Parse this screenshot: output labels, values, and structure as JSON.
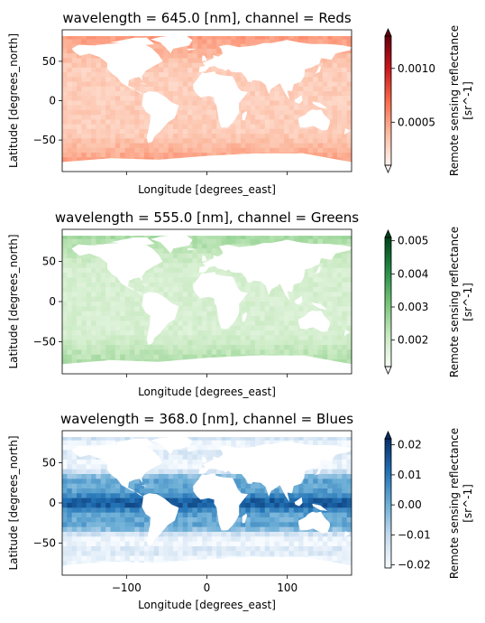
{
  "chart_data": [
    {
      "type": "heatmap",
      "title": "wavelength = 645.0 [nm], channel = Reds",
      "ylabel": "Latitude [degrees_north]",
      "xlabel": "Longitude [degrees_east]",
      "xlim": [
        -180,
        180
      ],
      "ylim": [
        -90,
        90
      ],
      "x_ticks": [],
      "y_ticks": [
        50,
        0,
        -50
      ],
      "colormap": "Reds",
      "colorbar": {
        "label": "Remote sensing reflectance [sr^-1]",
        "range": [
          0.0001,
          0.0013
        ],
        "ticks": [
          0.0005,
          0.001
        ],
        "tick_labels": [
          "0.0005",
          "0.0010"
        ],
        "extend": "both"
      }
    },
    {
      "type": "heatmap",
      "title": "wavelength = 555.0 [nm], channel = Greens",
      "ylabel": "Latitude [degrees_north]",
      "xlabel": "Longitude [degrees_east]",
      "xlim": [
        -180,
        180
      ],
      "ylim": [
        -90,
        90
      ],
      "x_ticks": [],
      "y_ticks": [
        50,
        0,
        -50
      ],
      "colormap": "Greens",
      "colorbar": {
        "label": "Remote sensing reflectance [sr^-1]",
        "range": [
          0.0012,
          0.0051
        ],
        "ticks": [
          0.002,
          0.003,
          0.004,
          0.005
        ],
        "tick_labels": [
          "0.002",
          "0.003",
          "0.004",
          "0.005"
        ],
        "extend": "both"
      }
    },
    {
      "type": "heatmap",
      "title": "wavelength = 368.0 [nm], channel = Blues",
      "ylabel": "Latitude [degrees_north]",
      "xlabel": "Longitude [degrees_east]",
      "xlim": [
        -180,
        180
      ],
      "ylim": [
        -90,
        90
      ],
      "x_ticks": [
        -100,
        0,
        100
      ],
      "y_ticks": [
        50,
        0,
        -50
      ],
      "colormap": "Blues",
      "colorbar": {
        "label": "Remote sensing reflectance [sr^-1]",
        "range": [
          -0.021,
          0.022
        ],
        "ticks": [
          -0.02,
          -0.01,
          0.0,
          0.01,
          0.02
        ],
        "tick_labels": [
          "−0.02",
          "−0.01",
          "0.00",
          "0.01",
          "0.02"
        ],
        "extend": "max"
      }
    }
  ],
  "colormaps": {
    "Reds": [
      "#fff5f0",
      "#fcbba1",
      "#fb6a4a",
      "#cb181d",
      "#67000d"
    ],
    "Greens": [
      "#f7fcf5",
      "#c7e9c0",
      "#74c476",
      "#238b45",
      "#00441b"
    ],
    "Blues": [
      "#f7fbff",
      "#c6dbef",
      "#6baed6",
      "#2171b5",
      "#08306b"
    ]
  }
}
